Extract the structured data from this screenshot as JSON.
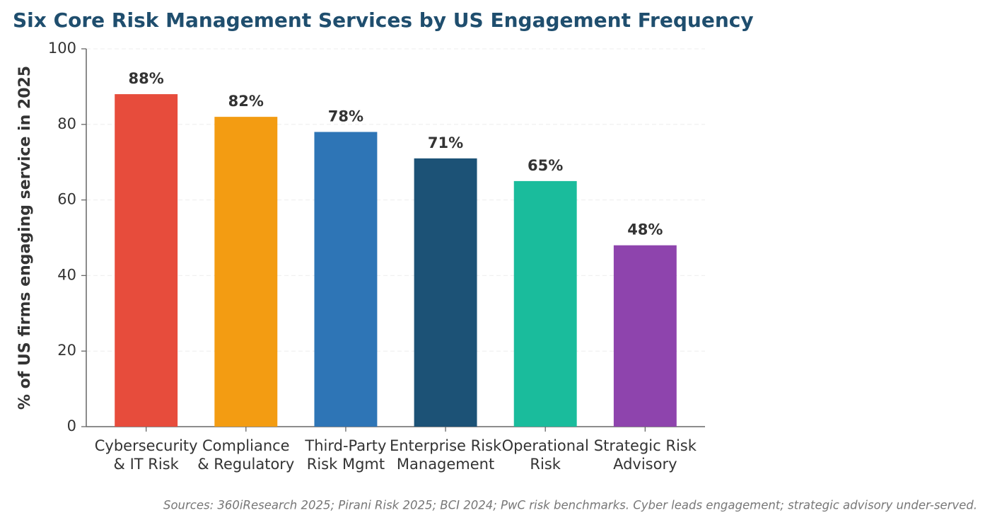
{
  "chart_data": {
    "type": "bar",
    "title": "Six Core Risk Management Services by US Engagement Frequency",
    "y_label": "% of US firms engaging service in 2025",
    "categories": [
      [
        "Cybersecurity",
        "& IT Risk"
      ],
      [
        "Compliance",
        "& Regulatory"
      ],
      [
        "Third-Party",
        "Risk Mgmt"
      ],
      [
        "Enterprise Risk",
        "Management"
      ],
      [
        "Operational",
        "Risk"
      ],
      [
        "Strategic Risk",
        "Advisory"
      ]
    ],
    "values": [
      88,
      82,
      78,
      71,
      65,
      48
    ],
    "value_labels": [
      "88%",
      "82%",
      "78%",
      "71%",
      "65%",
      "48%"
    ],
    "colors": [
      "#e74c3c",
      "#f39c12",
      "#2e75b6",
      "#1c5276",
      "#1abc9c",
      "#8e44ad"
    ],
    "ylim": [
      0,
      100
    ],
    "yticks": [
      0,
      20,
      40,
      60,
      80,
      100
    ],
    "grid": true,
    "note": "Sources: 360iResearch 2025; Pirani Risk 2025; BCI 2024; PwC risk benchmarks. Cyber leads engagement; strategic advisory under-served."
  }
}
